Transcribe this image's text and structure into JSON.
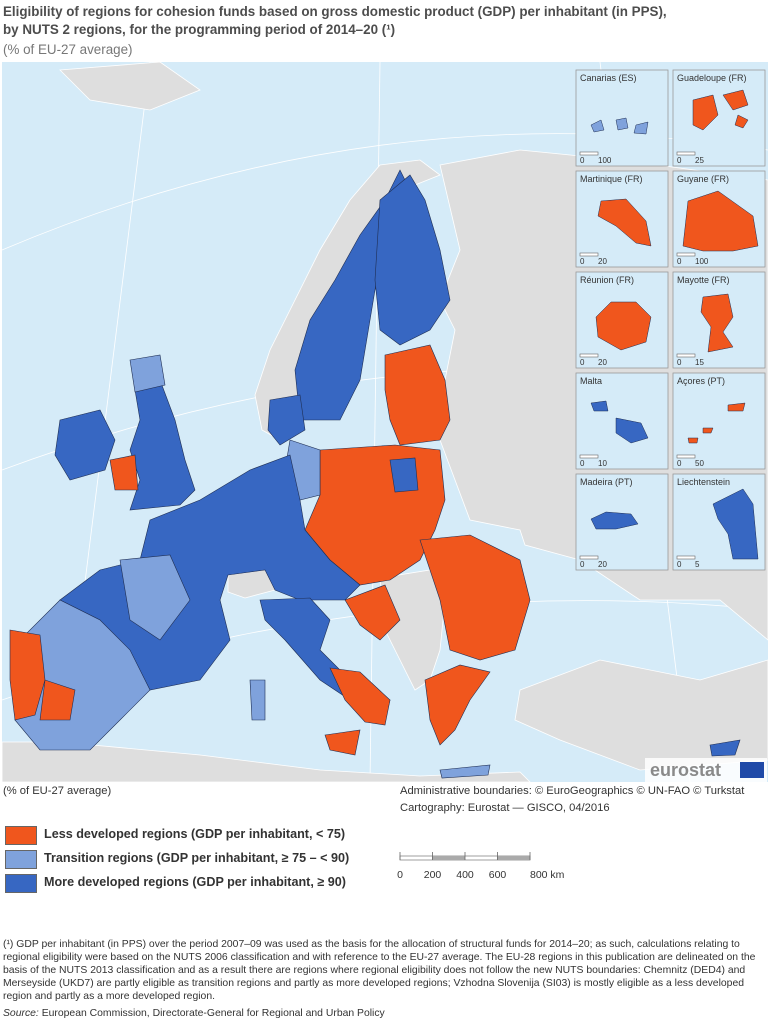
{
  "header": {
    "title_lines": [
      "Eligibility of regions for cohesion funds based on gross domestic product (GDP) per inhabitant (in PPS),",
      "by NUTS 2 regions, for the programming period of 2014–20 (¹)"
    ],
    "subtitle": "(% of EU-27 average)"
  },
  "insets": [
    {
      "name": "Canarias (ES)",
      "scale": [
        "0",
        "100"
      ]
    },
    {
      "name": "Guadeloupe (FR)",
      "scale": [
        "0",
        "25"
      ]
    },
    {
      "name": "Martinique (FR)",
      "scale": [
        "0",
        "20"
      ]
    },
    {
      "name": "Guyane (FR)",
      "scale": [
        "0",
        "100"
      ]
    },
    {
      "name": "Réunion (FR)",
      "scale": [
        "0",
        "20"
      ]
    },
    {
      "name": "Mayotte (FR)",
      "scale": [
        "0",
        "15"
      ]
    },
    {
      "name": "Malta",
      "scale": [
        "0",
        "10"
      ]
    },
    {
      "name": "Açores (PT)",
      "scale": [
        "0",
        "50"
      ]
    },
    {
      "name": "Madeira (PT)",
      "scale": [
        "0",
        "20"
      ]
    },
    {
      "name": "Liechtenstein",
      "scale": [
        "0",
        "5"
      ]
    }
  ],
  "logo": "eurostat",
  "legend": {
    "title": "(% of EU-27 average)",
    "items": [
      {
        "label": "Less developed regions (GDP per inhabitant, < 75)",
        "color": "#f0561d"
      },
      {
        "label": "Transition regions (GDP per inhabitant, ≥ 75 – < 90)",
        "color": "#7fa2dc"
      },
      {
        "label": "More developed regions (GDP per inhabitant, ≥ 90)",
        "color": "#3767c2"
      }
    ]
  },
  "credits": [
    "Administrative boundaries: © EuroGeographics © UN-FAO © Turkstat",
    "Cartography: Eurostat — GISCO, 04/2016"
  ],
  "scale_bar": [
    "0",
    "200",
    "400",
    "600",
    "800 km"
  ],
  "footnote": "(¹) GDP per inhabitant (in PPS) over the period 2007–09 was used as the basis for the allocation of structural funds for 2014–20; as such, calculations relating to regional eligibility were based on the NUTS 2006 classification and with reference to the EU-27 average. The EU-28 regions in this publication are delineated on the basis of the NUTS 2013 classification and as a result there are regions where regional eligibility does not follow the new NUTS boundaries: Chemnitz (DED4) and Merseyside (UKD7) are partly eligible as transition regions and partly as more developed regions; Vzhodna Slovenija (SI03) is mostly eligible as a less developed region and partly as a more developed region.",
  "source": {
    "label": "Source:",
    "text": "European Commission, Directorate-General for Regional and Urban Policy"
  }
}
